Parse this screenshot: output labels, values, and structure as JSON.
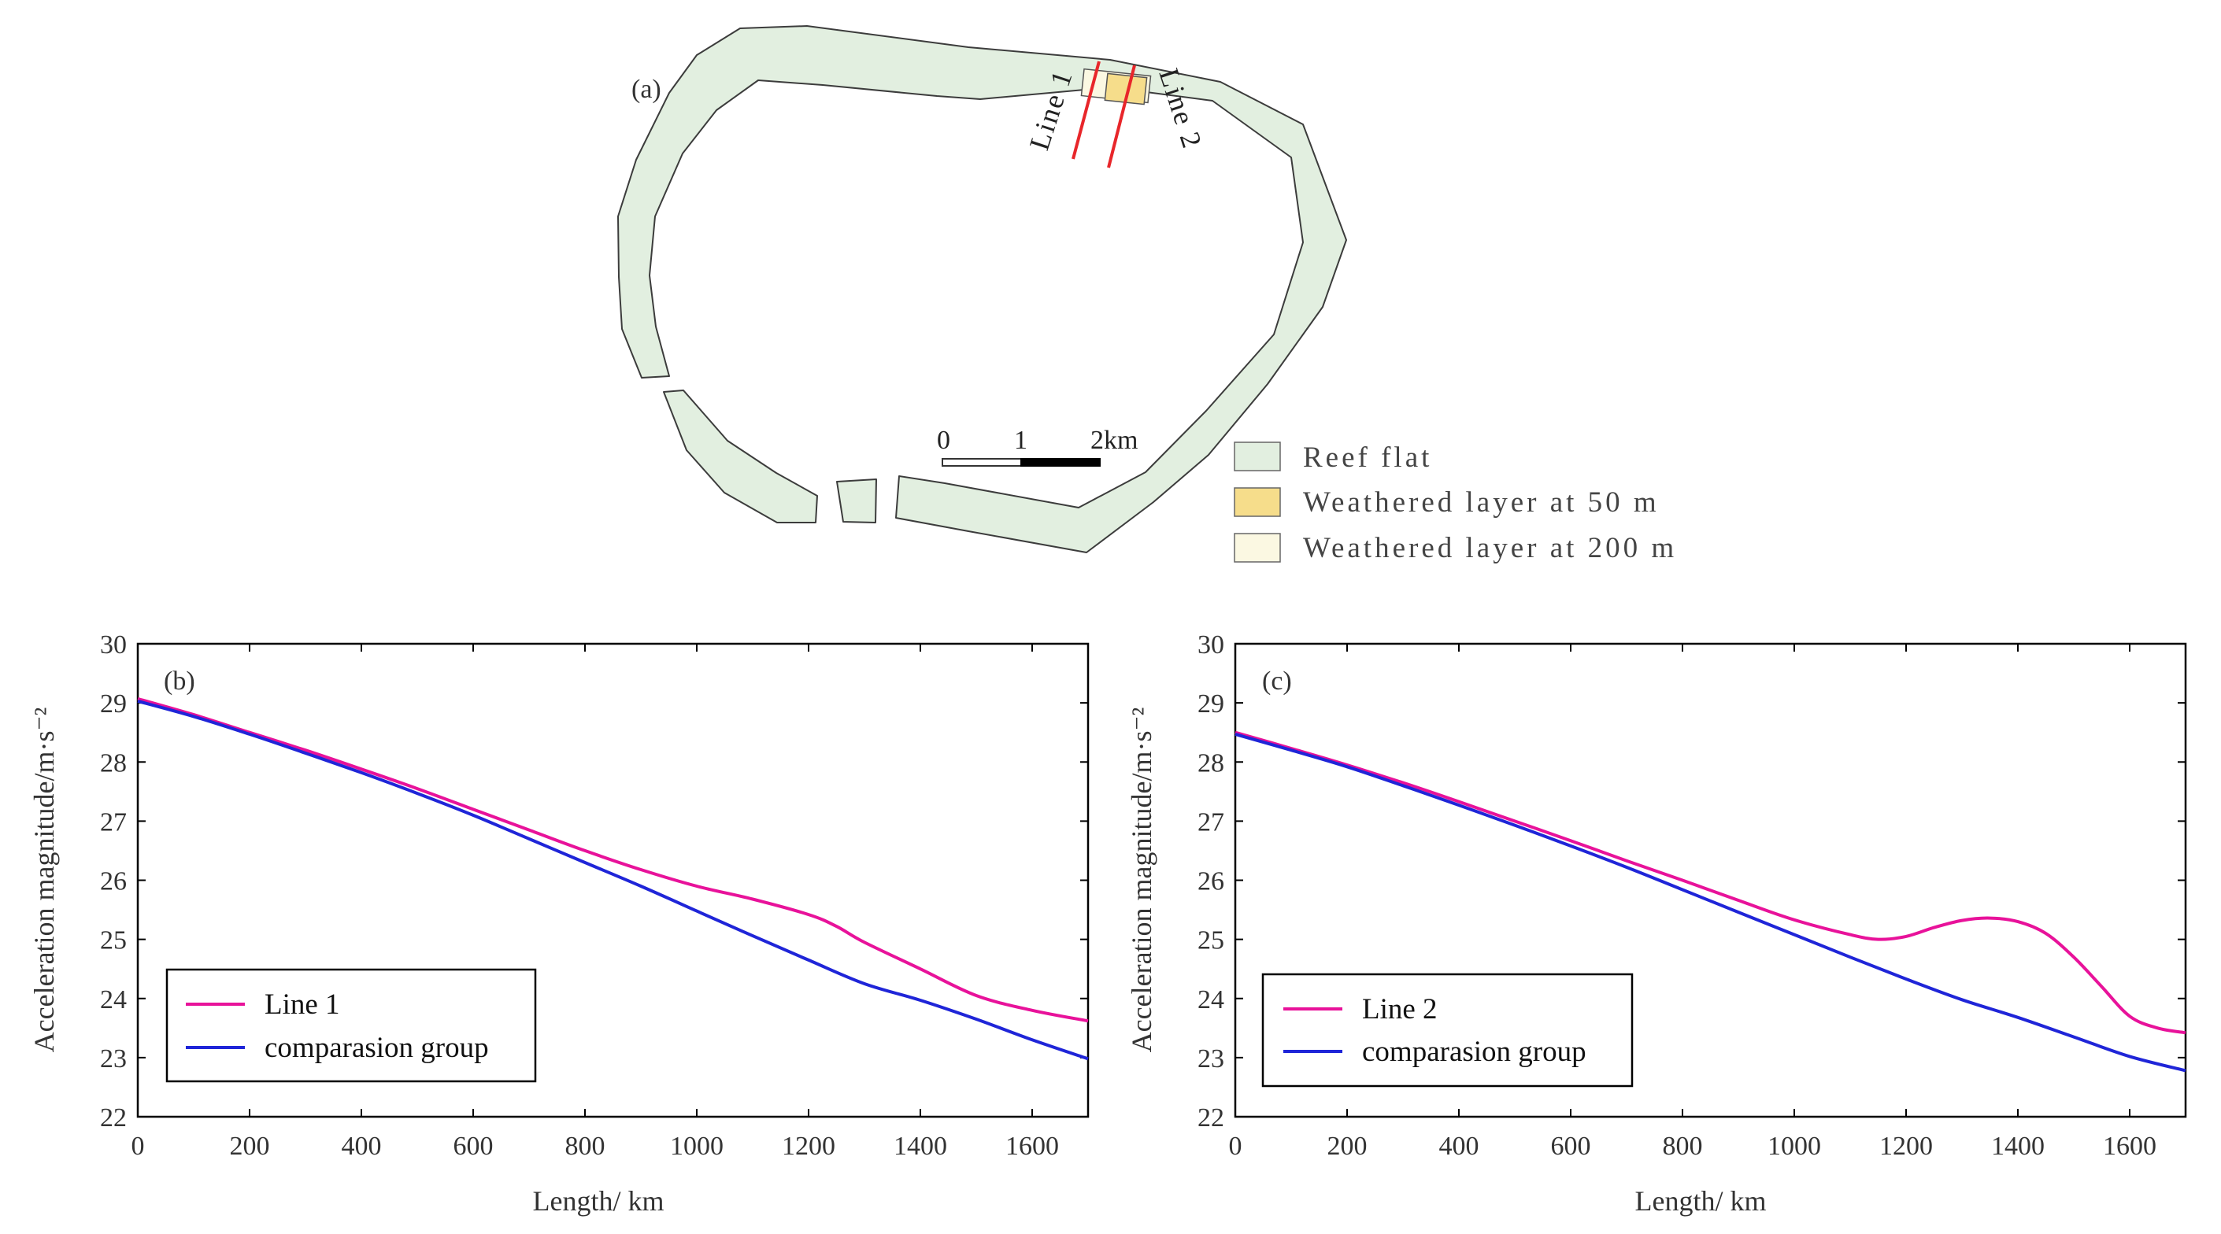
{
  "map": {
    "panel_label": "(a)",
    "line_labels": [
      "Line 1",
      "Line 2"
    ],
    "scale_labels": [
      "0",
      "1",
      "2km"
    ],
    "legend": [
      {
        "label": "Reef flat",
        "color": "#e2efe0"
      },
      {
        "label": "Weathered layer at 50 m",
        "color": "#f6dd8b"
      },
      {
        "label": "Weathered layer at 200 m",
        "color": "#fbf8e2"
      }
    ],
    "colors": {
      "reef": "#e2efe0",
      "outline": "#3c3c3c",
      "profile_line": "#e8262a"
    }
  },
  "chart_data": [
    {
      "type": "line",
      "panel_label": "(b)",
      "xlabel": "Length/ km",
      "ylabel": "Acceleration magnitude/m·s⁻²",
      "xlim": [
        0,
        1700
      ],
      "ylim": [
        22,
        30
      ],
      "xticks": [
        "0",
        "200",
        "400",
        "600",
        "800",
        "1000",
        "1200",
        "1400",
        "1600"
      ],
      "yticks": [
        "22",
        "23",
        "24",
        "25",
        "26",
        "27",
        "28",
        "29",
        "30"
      ],
      "legend_position": "bottom-left",
      "series": [
        {
          "name": "Line 1",
          "color": "#e8129a",
          "x": [
            0,
            100,
            200,
            300,
            400,
            500,
            600,
            700,
            800,
            900,
            1000,
            1100,
            1200,
            1250,
            1300,
            1400,
            1500,
            1600,
            1700
          ],
          "y": [
            29.07,
            28.8,
            28.5,
            28.2,
            27.88,
            27.55,
            27.2,
            26.85,
            26.5,
            26.18,
            25.9,
            25.68,
            25.42,
            25.22,
            24.95,
            24.5,
            24.05,
            23.8,
            23.62
          ]
        },
        {
          "name": "comparasion group",
          "color": "#1f25d8",
          "x": [
            0,
            100,
            200,
            300,
            400,
            500,
            600,
            700,
            800,
            900,
            1000,
            1100,
            1200,
            1300,
            1400,
            1500,
            1600,
            1700
          ],
          "y": [
            29.03,
            28.77,
            28.47,
            28.15,
            27.82,
            27.47,
            27.1,
            26.7,
            26.3,
            25.9,
            25.48,
            25.06,
            24.65,
            24.25,
            23.97,
            23.65,
            23.3,
            22.98
          ]
        }
      ]
    },
    {
      "type": "line",
      "panel_label": "(c)",
      "xlabel": "Length/ km",
      "ylabel": "Acceleration magnitude/m·s⁻²",
      "xlim": [
        0,
        1700
      ],
      "ylim": [
        22,
        30
      ],
      "xticks": [
        "0",
        "200",
        "400",
        "600",
        "800",
        "1000",
        "1200",
        "1400",
        "1600"
      ],
      "yticks": [
        "22",
        "23",
        "24",
        "25",
        "26",
        "27",
        "28",
        "29",
        "30"
      ],
      "legend_position": "bottom-left",
      "series": [
        {
          "name": "Line 2",
          "color": "#e8129a",
          "x": [
            0,
            100,
            200,
            300,
            400,
            500,
            600,
            700,
            800,
            900,
            1000,
            1100,
            1150,
            1200,
            1250,
            1300,
            1350,
            1400,
            1450,
            1500,
            1550,
            1600,
            1650,
            1700
          ],
          "y": [
            28.5,
            28.23,
            27.95,
            27.65,
            27.33,
            27.0,
            26.67,
            26.33,
            26.0,
            25.66,
            25.33,
            25.08,
            25.0,
            25.05,
            25.2,
            25.32,
            25.36,
            25.3,
            25.1,
            24.7,
            24.2,
            23.7,
            23.5,
            23.42
          ]
        },
        {
          "name": "comparasion group",
          "color": "#1f25d8",
          "x": [
            0,
            100,
            200,
            300,
            400,
            500,
            600,
            700,
            800,
            900,
            1000,
            1100,
            1200,
            1300,
            1400,
            1500,
            1600,
            1700
          ],
          "y": [
            28.47,
            28.2,
            27.92,
            27.6,
            27.27,
            26.93,
            26.58,
            26.22,
            25.84,
            25.46,
            25.08,
            24.7,
            24.33,
            23.98,
            23.68,
            23.35,
            23.02,
            22.78
          ]
        }
      ]
    }
  ]
}
